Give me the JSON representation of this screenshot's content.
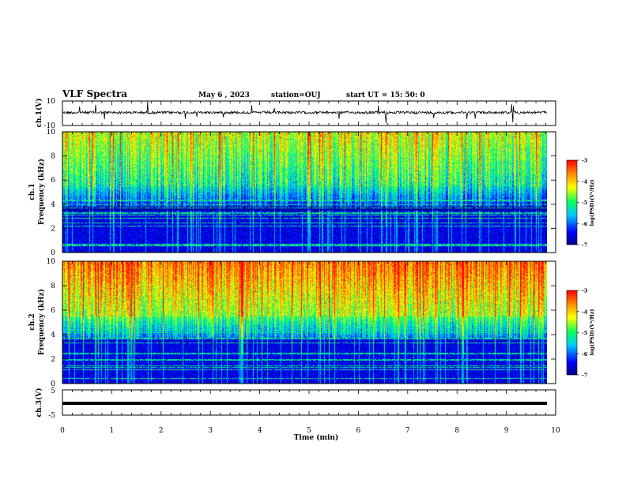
{
  "header": {
    "title": "VLF Spectra",
    "date": "May 6  , 2023",
    "station": "station=OUJ",
    "start": "start  UT  =   15: 50: 0"
  },
  "chart_data": [
    {
      "id": "ch1-waveform",
      "type": "line",
      "ylabel": "ch.1(V)",
      "ylim": [
        -10,
        10
      ],
      "yticks": [
        "10",
        "-10"
      ],
      "series": [
        {
          "values_desc": "waveform near 0 V with sporadic spikes"
        }
      ]
    },
    {
      "id": "ch1-spectrogram",
      "type": "heatmap",
      "ylabel_line1": "ch.1",
      "ylabel_line2": "Frequency (kHz)",
      "ylim": [
        0,
        10
      ],
      "yticks": [
        "0",
        "2",
        "4",
        "6",
        "8",
        "10"
      ],
      "colorbar": {
        "label": "log(PSD)(V²/Hz)",
        "range": [
          -7,
          -3
        ],
        "ticks": [
          "-3",
          "-4",
          "-5",
          "-6",
          "-7"
        ]
      }
    },
    {
      "id": "ch2-spectrogram",
      "type": "heatmap",
      "ylabel_line1": "ch.2",
      "ylabel_line2": "Frequency (kHz)",
      "ylim": [
        0,
        10
      ],
      "yticks": [
        "0",
        "2",
        "4",
        "6",
        "8",
        "10"
      ],
      "colorbar": {
        "label": "log(PSD)(V²/Hz)",
        "range": [
          -7,
          -3
        ],
        "ticks": [
          "-3",
          "-4",
          "-5",
          "-6",
          "-7"
        ]
      }
    },
    {
      "id": "ch3-waveform",
      "type": "line",
      "ylabel": "ch.3(V)",
      "ylim": [
        -5,
        5
      ],
      "yticks": [
        "5",
        "-5"
      ],
      "series": [
        {
          "values_desc": "flat line near -1.5 V"
        }
      ]
    }
  ],
  "xaxis": {
    "label": "Time  (min)",
    "range": [
      0,
      10
    ],
    "ticks": [
      "0",
      "1",
      "2",
      "3",
      "4",
      "5",
      "6",
      "7",
      "8",
      "9",
      "10"
    ]
  },
  "colors": {
    "colormap": [
      "#00008b",
      "#0000ff",
      "#00c8ff",
      "#00ff80",
      "#ffff00",
      "#ff8000",
      "#ff0000"
    ]
  }
}
